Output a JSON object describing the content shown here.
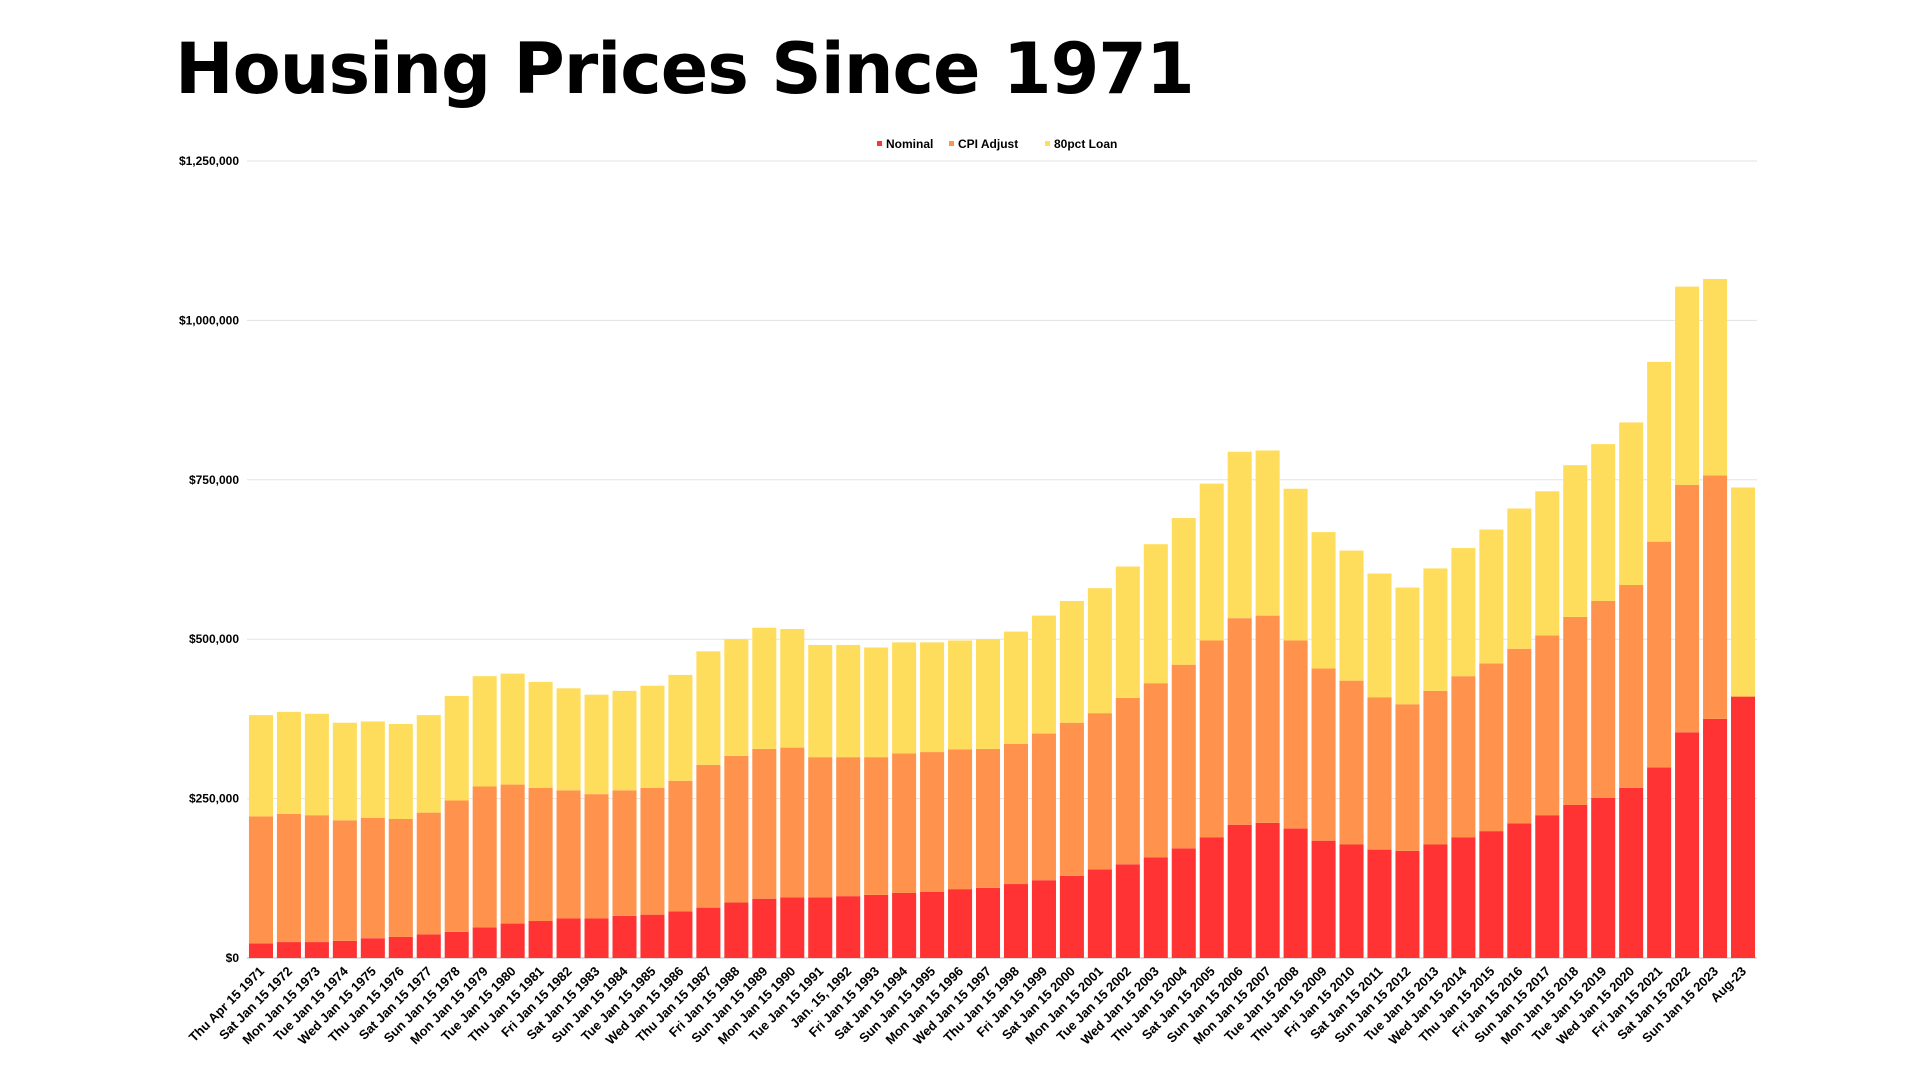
{
  "title": "Housing Prices Since 1971",
  "chart_data": {
    "type": "bar",
    "stacked": true,
    "title": "Housing Prices Since 1971",
    "xlabel": "",
    "ylabel": "",
    "value_unit": "thousands USD (segment values, stacked)",
    "ylim": [
      0,
      1250000
    ],
    "yticks": [
      0,
      250000,
      500000,
      750000,
      1000000,
      1250000
    ],
    "ytick_labels": [
      "$0",
      "$250,000",
      "$500,000",
      "$750,000",
      "$1,000,000",
      "$1,250,000"
    ],
    "grid": true,
    "legend_position": "top-center",
    "categories": [
      "Thu Apr 15 1971",
      "Sat Jan 15 1972",
      "Mon Jan 15 1973",
      "Tue Jan 15 1974",
      "Wed Jan 15 1975",
      "Thu Jan 15 1976",
      "Sat Jan 15 1977",
      "Sun Jan 15 1978",
      "Mon Jan 15 1979",
      "Tue Jan 15 1980",
      "Thu Jan 15 1981",
      "Fri Jan 15 1982",
      "Sat Jan 15 1983",
      "Sun Jan 15 1984",
      "Tue Jan 15 1985",
      "Wed Jan 15 1986",
      "Thu Jan 15 1987",
      "Fri Jan 15 1988",
      "Sun Jan 15 1989",
      "Mon Jan 15 1990",
      "Tue Jan 15 1991",
      "Jan. 15, 1992",
      "Fri Jan 15 1993",
      "Sat Jan 15 1994",
      "Sun Jan 15 1995",
      "Mon Jan 15 1996",
      "Wed Jan 15 1997",
      "Thu Jan 15 1998",
      "Fri Jan 15 1999",
      "Sat Jan 15 2000",
      "Mon Jan 15 2001",
      "Tue Jan 15 2002",
      "Wed Jan 15 2003",
      "Thu Jan 15 2004",
      "Sat Jan 15 2005",
      "Sun Jan 15 2006",
      "Mon Jan 15 2007",
      "Tue Jan 15 2008",
      "Thu Jan 15 2009",
      "Fri Jan 15 2010",
      "Sat Jan 15 2011",
      "Sun Jan 15 2012",
      "Tue Jan 15 2013",
      "Wed Jan 15 2014",
      "Thu Jan 15 2015",
      "Fri Jan 15 2016",
      "Sun Jan 15 2017",
      "Mon Jan 15 2018",
      "Tue Jan 15 2019",
      "Wed Jan 15 2020",
      "Fri Jan 15 2021",
      "Sat Jan 15 2022",
      "Sun Jan 15 2023",
      "Aug-23"
    ],
    "series": [
      {
        "name": "Nominal",
        "color": "#FF3333",
        "values": [
          23,
          25,
          25,
          27,
          31,
          33,
          37,
          41,
          48,
          54,
          58,
          62,
          62,
          66,
          68,
          73,
          79,
          87,
          93,
          95,
          95,
          97,
          99,
          102,
          104,
          108,
          110,
          116,
          122,
          129,
          139,
          147,
          158,
          172,
          189,
          209,
          212,
          203,
          184,
          178,
          170,
          168,
          178,
          189,
          199,
          211,
          224,
          240,
          251,
          267,
          299,
          354,
          375,
          410
        ]
      },
      {
        "name": "CPI Adjust",
        "color": "#FF934D",
        "values": [
          199,
          201,
          199,
          189,
          189,
          185,
          191,
          206,
          221,
          218,
          209,
          201,
          195,
          197,
          199,
          205,
          224,
          230,
          235,
          235,
          220,
          218,
          216,
          219,
          219,
          219,
          218,
          220,
          230,
          240,
          245,
          261,
          273,
          288,
          309,
          324,
          325,
          295,
          270,
          257,
          239,
          230,
          241,
          253,
          263,
          274,
          282,
          295,
          309,
          318,
          354,
          388,
          382,
          0
        ]
      },
      {
        "name": "80pct Loan",
        "color": "#FFDD5C",
        "values": [
          159,
          160,
          159,
          153,
          151,
          149,
          153,
          164,
          173,
          174,
          166,
          160,
          156,
          156,
          160,
          166,
          178,
          183,
          190,
          186,
          176,
          176,
          172,
          174,
          172,
          171,
          172,
          176,
          185,
          191,
          196,
          206,
          218,
          230,
          246,
          261,
          259,
          238,
          214,
          204,
          194,
          183,
          192,
          201,
          210,
          220,
          226,
          238,
          246,
          255,
          282,
          311,
          308,
          328
        ]
      }
    ]
  }
}
